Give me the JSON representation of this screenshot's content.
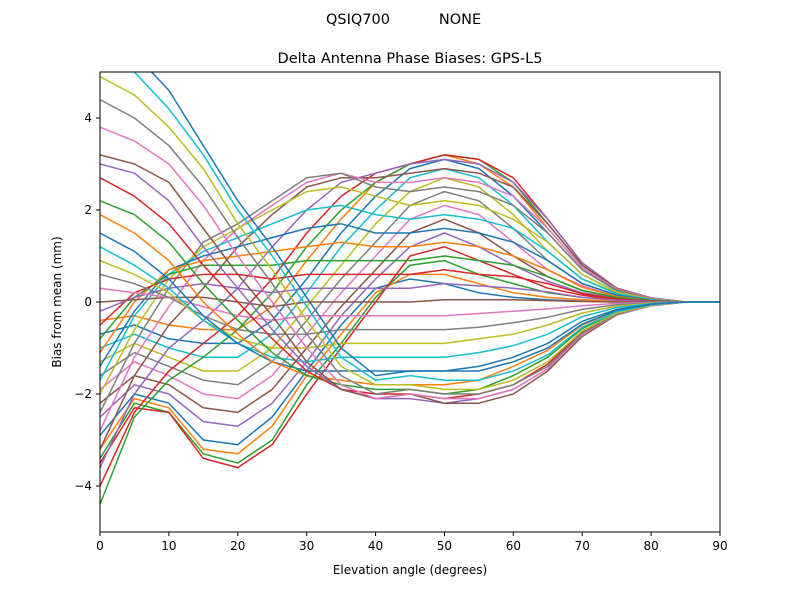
{
  "figure": {
    "suptitle_left": "QSIQ700",
    "suptitle_right": "NONE"
  },
  "chart_data": {
    "type": "line",
    "title": "Delta Antenna Phase Biases: GPS-L5",
    "xlabel": "Elevation angle (degrees)",
    "ylabel": "Bias from mean (mm)",
    "xlim": [
      0,
      90
    ],
    "ylim": [
      -5,
      5
    ],
    "x_ticks": [
      "0",
      "10",
      "20",
      "30",
      "40",
      "50",
      "60",
      "70",
      "80",
      "90"
    ],
    "y_ticks": [
      "−4",
      "−2",
      "0",
      "2",
      "4"
    ],
    "grid": false,
    "legend": "none",
    "x": [
      0,
      5,
      10,
      15,
      20,
      25,
      30,
      35,
      40,
      45,
      50,
      55,
      60,
      65,
      70,
      75,
      80,
      85,
      90
    ],
    "colors": [
      "#1f77b4",
      "#ff7f0e",
      "#2ca02c",
      "#d62728",
      "#9467bd",
      "#8c564b",
      "#e377c2",
      "#7f7f7f",
      "#bcbd22",
      "#17becf"
    ],
    "series": [
      {
        "values": [
          -2.9,
          -2.0,
          -2.2,
          -3.0,
          -3.1,
          -2.5,
          -1.5,
          -0.5,
          0.3,
          0.5,
          0.4,
          0.2,
          0.1,
          0.05,
          0.02,
          0.0,
          0.0,
          0.0,
          0.0
        ]
      },
      {
        "values": [
          -3.2,
          -2.1,
          -2.3,
          -3.2,
          -3.3,
          -2.7,
          -1.6,
          -0.7,
          0.2,
          0.6,
          0.6,
          0.4,
          0.2,
          0.1,
          0.05,
          0.02,
          0.0,
          0.0,
          0.0
        ]
      },
      {
        "values": [
          -3.4,
          -2.2,
          -2.4,
          -3.3,
          -3.5,
          -3.0,
          -1.8,
          -0.9,
          0.1,
          0.8,
          0.9,
          0.6,
          0.4,
          0.2,
          0.1,
          0.05,
          0.02,
          0.0,
          0.0
        ]
      },
      {
        "values": [
          -3.5,
          -2.3,
          -2.4,
          -3.4,
          -3.6,
          -3.1,
          -2.0,
          -1.0,
          0.0,
          1.0,
          1.2,
          0.9,
          0.6,
          0.3,
          0.15,
          0.05,
          0.02,
          0.0,
          0.0
        ]
      },
      {
        "values": [
          -2.5,
          -1.8,
          -2.0,
          -2.6,
          -2.7,
          -2.2,
          -1.3,
          -0.3,
          0.5,
          1.2,
          1.5,
          1.2,
          0.8,
          0.45,
          0.2,
          0.08,
          0.03,
          0.0,
          0.0
        ]
      },
      {
        "values": [
          -2.2,
          -1.6,
          -1.8,
          -2.3,
          -2.4,
          -1.9,
          -1.0,
          -0.1,
          0.7,
          1.5,
          1.8,
          1.5,
          1.0,
          0.55,
          0.25,
          0.1,
          0.04,
          0.0,
          0.0
        ]
      },
      {
        "values": [
          -1.9,
          -1.3,
          -1.6,
          -2.0,
          -2.1,
          -1.6,
          -0.7,
          0.2,
          1.0,
          1.8,
          2.1,
          1.9,
          1.3,
          0.7,
          0.35,
          0.12,
          0.05,
          0.0,
          0.0
        ]
      },
      {
        "values": [
          -1.6,
          -1.1,
          -1.4,
          -1.7,
          -1.8,
          -1.3,
          -0.4,
          0.5,
          1.3,
          2.1,
          2.4,
          2.2,
          1.6,
          0.9,
          0.4,
          0.15,
          0.05,
          0.0,
          0.0
        ]
      },
      {
        "values": [
          -1.3,
          -0.9,
          -1.2,
          -1.5,
          -1.5,
          -1.0,
          -0.1,
          0.8,
          1.7,
          2.4,
          2.7,
          2.5,
          1.9,
          1.1,
          0.5,
          0.2,
          0.06,
          0.0,
          0.0
        ]
      },
      {
        "values": [
          -1.0,
          -0.7,
          -1.0,
          -1.2,
          -1.2,
          -0.7,
          0.2,
          1.2,
          2.0,
          2.7,
          2.9,
          2.7,
          2.1,
          1.3,
          0.6,
          0.22,
          0.07,
          0.0,
          0.0
        ]
      },
      {
        "values": [
          -0.7,
          -0.5,
          -0.8,
          -0.9,
          -0.9,
          -0.4,
          0.5,
          1.5,
          2.3,
          2.9,
          3.1,
          2.9,
          2.3,
          1.5,
          0.7,
          0.25,
          0.08,
          0.0,
          0.0
        ]
      },
      {
        "values": [
          -0.4,
          -0.3,
          -0.5,
          -0.6,
          -0.6,
          -0.1,
          0.9,
          1.8,
          2.6,
          3.0,
          3.2,
          3.0,
          2.5,
          1.6,
          0.75,
          0.28,
          0.08,
          0.0,
          0.0
        ]
      },
      {
        "values": [
          -4.4,
          -2.5,
          -1.7,
          -1.2,
          -0.6,
          0.2,
          1.2,
          2.0,
          2.6,
          3.0,
          3.2,
          3.1,
          2.6,
          1.7,
          0.8,
          0.3,
          0.08,
          0.0,
          0.0
        ]
      },
      {
        "values": [
          -4.0,
          -2.4,
          -1.5,
          -0.9,
          -0.3,
          0.5,
          1.5,
          2.3,
          2.8,
          3.0,
          3.2,
          3.1,
          2.7,
          1.8,
          0.85,
          0.3,
          0.09,
          0.0,
          0.0
        ]
      },
      {
        "values": [
          -3.6,
          -2.0,
          -1.0,
          -0.4,
          0.3,
          1.2,
          2.0,
          2.6,
          2.8,
          3.0,
          3.1,
          3.0,
          2.6,
          1.8,
          0.85,
          0.3,
          0.09,
          0.0,
          0.0
        ]
      },
      {
        "values": [
          -3.2,
          -1.6,
          -0.5,
          0.3,
          1.2,
          1.9,
          2.5,
          2.7,
          2.7,
          2.8,
          2.9,
          2.8,
          2.5,
          1.7,
          0.8,
          0.3,
          0.08,
          0.0,
          0.0
        ]
      },
      {
        "values": [
          -2.8,
          -1.2,
          -0.1,
          0.9,
          1.6,
          2.1,
          2.6,
          2.8,
          2.6,
          2.6,
          2.7,
          2.6,
          2.3,
          1.6,
          0.75,
          0.28,
          0.08,
          0.0,
          0.0
        ]
      },
      {
        "values": [
          -2.4,
          -0.9,
          0.3,
          1.3,
          1.7,
          2.2,
          2.7,
          2.8,
          2.5,
          2.4,
          2.5,
          2.4,
          2.1,
          1.5,
          0.7,
          0.26,
          0.07,
          0.0,
          0.0
        ]
      },
      {
        "values": [
          -2.0,
          -0.6,
          0.5,
          1.2,
          1.6,
          2.0,
          2.4,
          2.5,
          2.3,
          2.1,
          2.2,
          2.1,
          1.8,
          1.3,
          0.6,
          0.22,
          0.06,
          0.0,
          0.0
        ]
      },
      {
        "values": [
          -1.7,
          -0.3,
          0.6,
          1.1,
          1.4,
          1.7,
          2.0,
          2.1,
          1.9,
          1.8,
          1.9,
          1.8,
          1.6,
          1.1,
          0.5,
          0.18,
          0.05,
          0.0,
          0.0
        ]
      },
      {
        "values": [
          -1.4,
          -0.2,
          0.7,
          1.0,
          1.2,
          1.4,
          1.6,
          1.7,
          1.5,
          1.5,
          1.6,
          1.5,
          1.3,
          0.9,
          0.4,
          0.15,
          0.04,
          0.0,
          0.0
        ]
      },
      {
        "values": [
          -1.1,
          0.0,
          0.7,
          0.9,
          1.0,
          1.1,
          1.2,
          1.3,
          1.2,
          1.2,
          1.3,
          1.2,
          1.0,
          0.7,
          0.32,
          0.12,
          0.03,
          0.0,
          0.0
        ]
      },
      {
        "values": [
          -0.8,
          0.1,
          0.6,
          0.8,
          0.8,
          0.8,
          0.9,
          0.9,
          0.9,
          0.9,
          1.0,
          0.9,
          0.8,
          0.55,
          0.25,
          0.1,
          0.03,
          0.0,
          0.0
        ]
      },
      {
        "values": [
          -0.5,
          0.2,
          0.5,
          0.6,
          0.6,
          0.5,
          0.6,
          0.6,
          0.6,
          0.6,
          0.7,
          0.6,
          0.55,
          0.4,
          0.18,
          0.07,
          0.02,
          0.0,
          0.0
        ]
      },
      {
        "values": [
          -0.2,
          0.1,
          0.3,
          0.4,
          0.3,
          0.2,
          0.3,
          0.3,
          0.3,
          0.3,
          0.4,
          0.35,
          0.3,
          0.22,
          0.1,
          0.04,
          0.01,
          0.0,
          0.0
        ]
      },
      {
        "values": [
          0.0,
          0.05,
          0.1,
          0.1,
          0.0,
          -0.1,
          0.0,
          0.0,
          0.0,
          0.0,
          0.05,
          0.05,
          0.05,
          0.03,
          0.01,
          0.0,
          0.0,
          0.0,
          0.0
        ]
      },
      {
        "values": [
          0.3,
          0.2,
          0.1,
          -0.1,
          -0.3,
          -0.4,
          -0.3,
          -0.3,
          -0.3,
          -0.3,
          -0.3,
          -0.25,
          -0.2,
          -0.15,
          -0.08,
          -0.03,
          -0.01,
          0.0,
          0.0
        ]
      },
      {
        "values": [
          0.6,
          0.4,
          0.1,
          -0.3,
          -0.6,
          -0.7,
          -0.7,
          -0.6,
          -0.6,
          -0.6,
          -0.6,
          -0.55,
          -0.45,
          -0.33,
          -0.16,
          -0.06,
          -0.02,
          0.0,
          0.0
        ]
      },
      {
        "values": [
          0.9,
          0.6,
          0.2,
          -0.4,
          -0.8,
          -1.0,
          -1.0,
          -0.9,
          -0.9,
          -0.9,
          -0.9,
          -0.8,
          -0.7,
          -0.5,
          -0.24,
          -0.09,
          -0.03,
          0.0,
          0.0
        ]
      },
      {
        "values": [
          1.2,
          0.8,
          0.3,
          -0.4,
          -0.9,
          -1.2,
          -1.3,
          -1.2,
          -1.2,
          -1.2,
          -1.2,
          -1.1,
          -0.95,
          -0.7,
          -0.32,
          -0.12,
          -0.04,
          0.0,
          0.0
        ]
      },
      {
        "values": [
          1.5,
          1.1,
          0.5,
          -0.3,
          -0.9,
          -1.3,
          -1.5,
          -1.5,
          -1.5,
          -1.5,
          -1.5,
          -1.4,
          -1.2,
          -0.9,
          -0.42,
          -0.16,
          -0.05,
          0.0,
          0.0
        ]
      },
      {
        "values": [
          1.9,
          1.5,
          0.9,
          0.0,
          -0.7,
          -1.3,
          -1.6,
          -1.7,
          -1.8,
          -1.8,
          -1.8,
          -1.7,
          -1.4,
          -1.05,
          -0.5,
          -0.19,
          -0.06,
          0.0,
          0.0
        ]
      },
      {
        "values": [
          2.2,
          1.9,
          1.3,
          0.4,
          -0.4,
          -1.1,
          -1.6,
          -1.8,
          -1.9,
          -1.9,
          -2.0,
          -1.9,
          -1.6,
          -1.2,
          -0.58,
          -0.22,
          -0.06,
          0.0,
          0.0
        ]
      },
      {
        "values": [
          2.7,
          2.3,
          1.7,
          0.8,
          0.0,
          -0.8,
          -1.5,
          -1.9,
          -2.0,
          -2.0,
          -2.1,
          -2.0,
          -1.8,
          -1.35,
          -0.65,
          -0.25,
          -0.07,
          0.0,
          0.0
        ]
      },
      {
        "values": [
          3.0,
          2.8,
          2.2,
          1.2,
          0.3,
          -0.6,
          -1.4,
          -1.9,
          -2.1,
          -2.1,
          -2.2,
          -2.1,
          -1.9,
          -1.45,
          -0.7,
          -0.27,
          -0.08,
          0.0,
          0.0
        ]
      },
      {
        "values": [
          3.2,
          3.0,
          2.6,
          1.6,
          0.6,
          -0.3,
          -1.3,
          -1.9,
          -2.1,
          -2.0,
          -2.2,
          -2.2,
          -2.0,
          -1.5,
          -0.75,
          -0.28,
          -0.08,
          0.0,
          0.0
        ]
      },
      {
        "values": [
          3.8,
          3.5,
          3.0,
          2.1,
          1.0,
          0.0,
          -1.0,
          -1.8,
          -2.1,
          -2.0,
          -2.1,
          -2.1,
          -1.9,
          -1.45,
          -0.7,
          -0.27,
          -0.08,
          0.0,
          0.0
        ]
      },
      {
        "values": [
          4.4,
          4.0,
          3.4,
          2.5,
          1.4,
          0.4,
          -0.7,
          -1.6,
          -2.0,
          -1.9,
          -2.0,
          -2.0,
          -1.8,
          -1.4,
          -0.68,
          -0.26,
          -0.07,
          0.0,
          0.0
        ]
      },
      {
        "values": [
          4.9,
          4.5,
          3.8,
          2.9,
          1.7,
          0.7,
          -0.4,
          -1.4,
          -1.8,
          -1.8,
          -1.9,
          -1.9,
          -1.7,
          -1.3,
          -0.63,
          -0.24,
          -0.07,
          0.0,
          0.0
        ]
      },
      {
        "values": [
          5.5,
          5.0,
          4.2,
          3.2,
          2.0,
          1.0,
          -0.1,
          -1.2,
          -1.7,
          -1.6,
          -1.7,
          -1.7,
          -1.5,
          -1.15,
          -0.55,
          -0.21,
          -0.06,
          0.0,
          0.0
        ]
      },
      {
        "values": [
          6.0,
          5.4,
          4.6,
          3.4,
          2.2,
          1.2,
          0.1,
          -1.0,
          -1.6,
          -1.5,
          -1.5,
          -1.5,
          -1.3,
          -1.0,
          -0.48,
          -0.18,
          -0.05,
          0.0,
          0.0
        ]
      }
    ]
  }
}
